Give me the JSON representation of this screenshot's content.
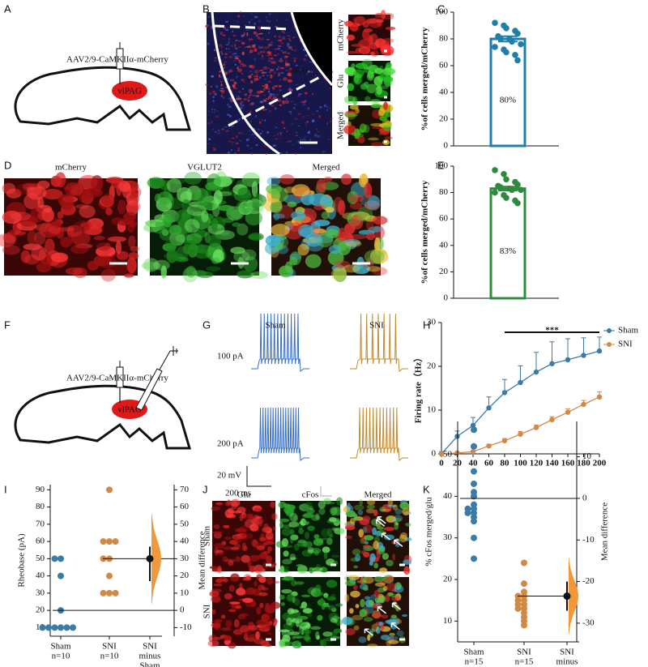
{
  "panel_labels": [
    "A",
    "B",
    "C",
    "D",
    "E",
    "F",
    "G",
    "H",
    "I",
    "J",
    "K"
  ],
  "a": {
    "construct": "AAV2/9-CaMKIIα-mCherry",
    "region": "vlPAG"
  },
  "b": {
    "region": "vlPAG",
    "insets": [
      "mCherry",
      "Glu",
      "Merged"
    ]
  },
  "d": {
    "channels": [
      "mCherry",
      "VGLUT2",
      "Merged"
    ]
  },
  "f": {
    "construct": "AAV2/9-CaMKIIα-mCherry",
    "region": "vlPAG"
  },
  "g": {
    "groups": [
      "Sham",
      "SNI"
    ],
    "currents": [
      "100 pA",
      "200 pA"
    ],
    "scale_voltage": "20 mV",
    "scale_time": "200 ms"
  },
  "j": {
    "channels": [
      "Glu",
      "cFos",
      "Merged"
    ],
    "groups": [
      "Sham",
      "SNI"
    ]
  },
  "chart_data": [
    {
      "type": "bar",
      "ylabel": "%of cells merged/mCherry",
      "values": [
        80
      ],
      "value_labels": [
        "80%"
      ],
      "errors": [
        2
      ],
      "points": [
        92,
        90,
        88,
        86,
        84,
        82,
        80,
        80,
        78,
        76,
        74,
        72,
        70,
        68,
        64
      ],
      "color": "#1f7fa8",
      "ylim": [
        0,
        100
      ],
      "yticks": [
        0,
        20,
        40,
        60,
        80,
        100
      ]
    },
    {
      "type": "bar",
      "ylabel": "%of cells merged/mCherry",
      "values": [
        83
      ],
      "value_labels": [
        "83%"
      ],
      "errors": [
        1.5
      ],
      "points": [
        97,
        94,
        90,
        88,
        86,
        85,
        84,
        83,
        82,
        82,
        80,
        78,
        76,
        74,
        72
      ],
      "color": "#2e8b3e",
      "ylim": [
        0,
        100
      ],
      "yticks": [
        0,
        20,
        40,
        60,
        80,
        100
      ]
    },
    {
      "type": "line",
      "ylabel": "Firing rate（Hz）",
      "x": [
        0,
        20,
        40,
        60,
        80,
        100,
        120,
        140,
        160,
        180,
        200
      ],
      "series": [
        {
          "name": "Sham",
          "color": "#3b7aa8",
          "values": [
            0,
            4,
            6.5,
            10.5,
            14,
            16.3,
            18.7,
            20.6,
            21.5,
            22.5,
            23.5
          ],
          "errors": [
            0.5,
            1.2,
            1.8,
            2.5,
            3,
            3.8,
            4.5,
            5,
            4.8,
            4,
            3.2
          ]
        },
        {
          "name": "SNI",
          "color": "#d0894a",
          "values": [
            0,
            0.2,
            0.5,
            1.8,
            3,
            4.5,
            6,
            7.8,
            9.5,
            11.3,
            13
          ],
          "errors": [
            0,
            0.2,
            0.3,
            0.4,
            0.5,
            0.6,
            0.6,
            0.7,
            0.8,
            0.9,
            1.2
          ]
        }
      ],
      "annotation": "***",
      "annotation_range": [
        80,
        200
      ],
      "xlim": [
        0,
        200
      ],
      "ylim": [
        0,
        30
      ],
      "xticks": [
        0,
        20,
        40,
        60,
        80,
        100,
        120,
        140,
        160,
        180,
        200
      ],
      "yticks": [
        0,
        10,
        20,
        30
      ],
      "legend": "right"
    },
    {
      "type": "estimation",
      "ylabel": "Rheobase (pA)",
      "y2label": "Mean difference",
      "groups": [
        {
          "label": [
            "Sham",
            "n=10"
          ],
          "color": "#3a7ca5",
          "values": [
            50,
            50,
            40,
            20,
            10,
            10,
            10,
            10,
            10,
            10
          ]
        },
        {
          "label": [
            "SNI",
            "n=10"
          ],
          "color": "#d08a48",
          "values": [
            90,
            60,
            60,
            60,
            50,
            50,
            40,
            30,
            30,
            30
          ]
        }
      ],
      "difference_label": [
        "SNI",
        "minus",
        "Sham"
      ],
      "means": [
        20,
        50
      ],
      "mean_difference": 30,
      "ci": [
        17,
        37
      ],
      "ylim": [
        5,
        93
      ],
      "yticks": [
        10,
        20,
        30,
        40,
        50,
        60,
        70,
        80,
        90
      ],
      "y2lim": [
        -15,
        73
      ],
      "y2ticks": [
        -10,
        0,
        10,
        20,
        30,
        40,
        50,
        60,
        70
      ]
    },
    {
      "type": "estimation",
      "ylabel": "% cFos merged/glu",
      "y2label": "Mean difference",
      "groups": [
        {
          "label": [
            "Sham",
            "n=15"
          ],
          "color": "#3a7ca5",
          "values": [
            56,
            52,
            46,
            43,
            41,
            40,
            38,
            37,
            37,
            36,
            36,
            35,
            34,
            30,
            25
          ]
        },
        {
          "label": [
            "SNI",
            "n=15"
          ],
          "color": "#d08a48",
          "values": [
            24,
            19,
            17,
            16,
            16,
            15,
            15,
            14,
            14,
            13,
            13,
            12,
            11,
            10,
            9
          ]
        }
      ],
      "difference_label": [
        "SNI",
        "minus",
        "Sham"
      ],
      "means": [
        39.5,
        16
      ],
      "mean_difference": -23.5,
      "ci": [
        -27,
        -20
      ],
      "ylim": [
        5,
        58
      ],
      "yticks": [
        10,
        20,
        30,
        40,
        50
      ],
      "y2lim": [
        -34.5,
        18.5
      ],
      "y2ticks": [
        -30,
        -20,
        -10,
        0,
        10
      ]
    }
  ]
}
